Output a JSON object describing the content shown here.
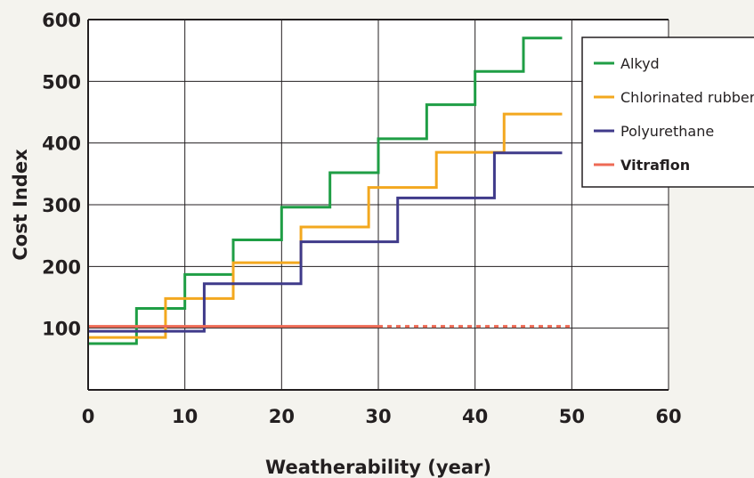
{
  "chart_data": {
    "type": "line",
    "step": true,
    "xlabel": "Weatherability (year)",
    "ylabel": "Cost Index",
    "xlim": [
      0,
      60
    ],
    "ylim": [
      0,
      600
    ],
    "xticks": [
      "0",
      "10",
      "20",
      "30",
      "40",
      "50",
      "60"
    ],
    "yticks": [
      "100",
      "200",
      "300",
      "400",
      "500",
      "600"
    ],
    "grid": true,
    "legend_position": "top-right",
    "series": [
      {
        "name": "Alkyd",
        "color": "#1f9e45",
        "points": [
          [
            0,
            75
          ],
          [
            5,
            75
          ],
          [
            5,
            132
          ],
          [
            10,
            132
          ],
          [
            10,
            187
          ],
          [
            15,
            187
          ],
          [
            15,
            243
          ],
          [
            20,
            243
          ],
          [
            20,
            296
          ],
          [
            25,
            296
          ],
          [
            25,
            352
          ],
          [
            30,
            352
          ],
          [
            30,
            407
          ],
          [
            35,
            407
          ],
          [
            35,
            462
          ],
          [
            40,
            462
          ],
          [
            40,
            516
          ],
          [
            45,
            516
          ],
          [
            45,
            570
          ],
          [
            49,
            570
          ]
        ]
      },
      {
        "name": "Chlorinated rubber",
        "color": "#f3a81f",
        "points": [
          [
            0,
            85
          ],
          [
            8,
            85
          ],
          [
            8,
            148
          ],
          [
            15,
            148
          ],
          [
            15,
            206
          ],
          [
            22,
            206
          ],
          [
            22,
            264
          ],
          [
            29,
            264
          ],
          [
            29,
            328
          ],
          [
            36,
            328
          ],
          [
            36,
            385
          ],
          [
            43,
            385
          ],
          [
            43,
            447
          ],
          [
            49,
            447
          ]
        ]
      },
      {
        "name": "Polyurethane",
        "color": "#3f3a8a",
        "points": [
          [
            0,
            95
          ],
          [
            12,
            95
          ],
          [
            12,
            172
          ],
          [
            22,
            172
          ],
          [
            22,
            240
          ],
          [
            32,
            240
          ],
          [
            32,
            311
          ],
          [
            42,
            311
          ],
          [
            42,
            384
          ],
          [
            49,
            384
          ]
        ]
      },
      {
        "name": "Vitraflon",
        "color": "#ee6a55",
        "legend_bold": true,
        "points": [
          [
            0,
            103
          ],
          [
            30,
            103
          ]
        ],
        "dashed_points": [
          [
            30,
            103
          ],
          [
            50,
            103
          ]
        ]
      }
    ]
  }
}
